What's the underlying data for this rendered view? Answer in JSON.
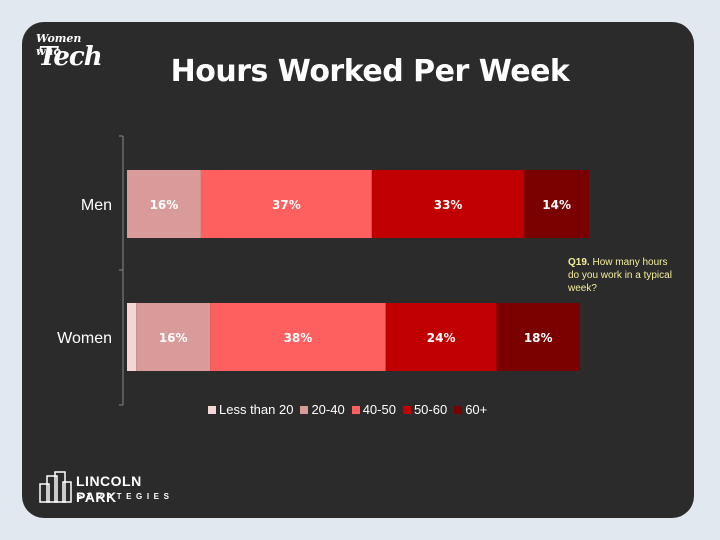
{
  "brand": {
    "line1": "Women who",
    "line2": "Tech"
  },
  "title": "Hours Worked Per Week",
  "note": {
    "question": "Q19.",
    "text": "How many hours do you work in a typical week?"
  },
  "logo": {
    "line1": "LINCOLN PARK",
    "line2": "STRATEGIES"
  },
  "colors": [
    "#f5d5d5",
    "#d99a9a",
    "#fe5f5f",
    "#c00000",
    "#7b0000"
  ],
  "chart_data": {
    "type": "bar",
    "orientation": "horizontal",
    "stacked": true,
    "categories": [
      "Men",
      "Women"
    ],
    "series": [
      {
        "name": "Less than 20",
        "values": [
          0,
          2
        ],
        "labels": [
          "",
          ""
        ]
      },
      {
        "name": "20-40",
        "values": [
          16,
          16
        ],
        "labels": [
          "16%",
          "16%"
        ]
      },
      {
        "name": "40-50",
        "values": [
          37,
          38
        ],
        "labels": [
          "37%",
          "38%"
        ]
      },
      {
        "name": "50-60",
        "values": [
          33,
          24
        ],
        "labels": [
          "33%",
          "24%"
        ]
      },
      {
        "name": "60+",
        "values": [
          14,
          18
        ],
        "labels": [
          "14%",
          "18%"
        ]
      }
    ],
    "xlim": [
      0,
      100
    ],
    "legend": "bottom",
    "grid": false
  }
}
